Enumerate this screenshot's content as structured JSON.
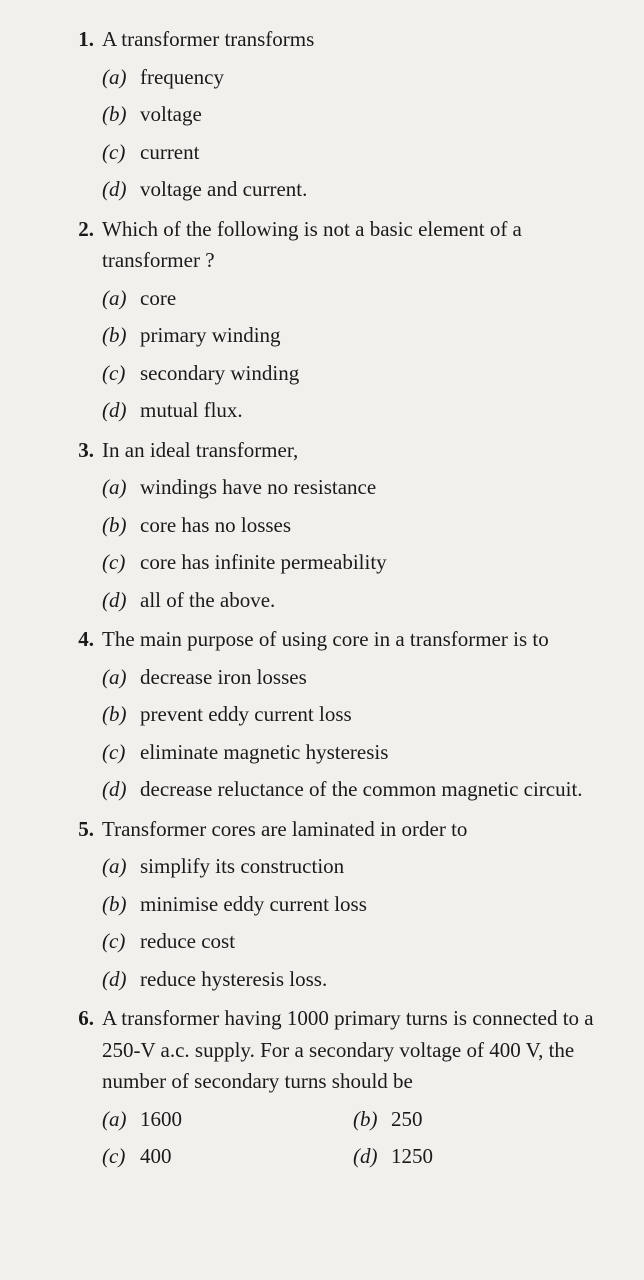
{
  "questions": [
    {
      "num": "1.",
      "text": "A transformer transforms",
      "layout": "vertical",
      "options": [
        {
          "label": "(a)",
          "text": "frequency"
        },
        {
          "label": "(b)",
          "text": "voltage"
        },
        {
          "label": "(c)",
          "text": "current"
        },
        {
          "label": "(d)",
          "text": "voltage and current."
        }
      ]
    },
    {
      "num": "2.",
      "text": "Which of the following is not a basic element of a transformer ?",
      "layout": "vertical",
      "options": [
        {
          "label": "(a)",
          "text": "core"
        },
        {
          "label": "(b)",
          "text": "primary winding"
        },
        {
          "label": "(c)",
          "text": "secondary winding"
        },
        {
          "label": "(d)",
          "text": "mutual flux."
        }
      ]
    },
    {
      "num": "3.",
      "text": "In an ideal transformer,",
      "layout": "vertical",
      "options": [
        {
          "label": "(a)",
          "text": "windings have no resistance"
        },
        {
          "label": "(b)",
          "text": "core has no losses"
        },
        {
          "label": "(c)",
          "text": "core has infinite permeability"
        },
        {
          "label": "(d)",
          "text": "all of the above."
        }
      ]
    },
    {
      "num": "4.",
      "text": "The main purpose of using core in a transformer is to",
      "layout": "vertical",
      "options": [
        {
          "label": "(a)",
          "text": "decrease iron losses"
        },
        {
          "label": "(b)",
          "text": "prevent eddy current loss"
        },
        {
          "label": "(c)",
          "text": "eliminate magnetic hysteresis"
        },
        {
          "label": "(d)",
          "text": "decrease reluctance of the common magnetic circuit."
        }
      ]
    },
    {
      "num": "5.",
      "text": "Transformer cores are laminated in order to",
      "layout": "vertical",
      "options": [
        {
          "label": "(a)",
          "text": "simplify its construction"
        },
        {
          "label": "(b)",
          "text": "minimise eddy current loss"
        },
        {
          "label": "(c)",
          "text": "reduce cost"
        },
        {
          "label": "(d)",
          "text": "reduce hysteresis loss."
        }
      ]
    },
    {
      "num": "6.",
      "text": "A transformer having 1000 primary turns is connected to a 250-V a.c. supply. For a secondary voltage of 400 V, the number of secondary turns should be",
      "layout": "grid",
      "options": [
        {
          "label": "(a)",
          "text": "1600"
        },
        {
          "label": "(b)",
          "text": "250"
        },
        {
          "label": "(c)",
          "text": "400"
        },
        {
          "label": "(d)",
          "text": "1250"
        }
      ]
    }
  ]
}
